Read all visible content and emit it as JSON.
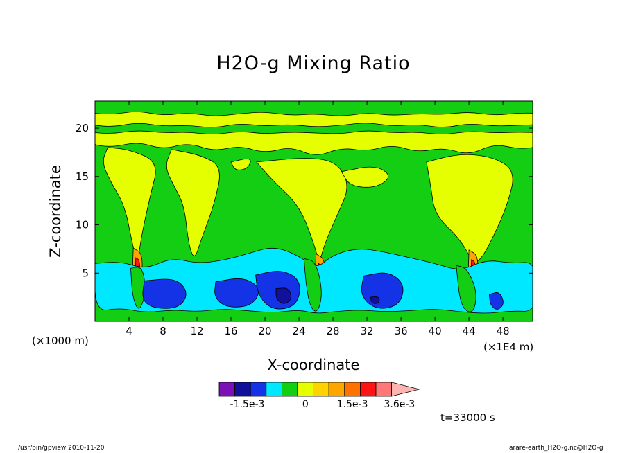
{
  "chart_data": {
    "type": "heatmap",
    "title": "H2O-g Mixing Ratio",
    "xlabel": "X-coordinate",
    "ylabel": "Z-coordinate",
    "x_unit": "(×1E4 m)",
    "y_unit": "(×1000 m)",
    "xlim": [
      0,
      51.5
    ],
    "ylim": [
      0,
      22.8
    ],
    "x_ticks": [
      4,
      8,
      12,
      16,
      20,
      24,
      28,
      32,
      36,
      40,
      44,
      48
    ],
    "y_ticks": [
      5,
      10,
      15,
      20
    ],
    "grid": false,
    "field": {
      "layers": [
        {
          "name": "upper-yellow-band",
          "z_range": [
            17.5,
            21.5
          ],
          "level": 1
        },
        {
          "name": "top-green",
          "z_range": [
            21.5,
            22.8
          ],
          "level": 0
        },
        {
          "name": "lower-cyan-band",
          "z_range": [
            0.8,
            6.3
          ],
          "level": -1
        },
        {
          "name": "surface-green",
          "z_range": [
            0,
            0.8
          ],
          "level": 0
        }
      ],
      "plumes_x": [
        5,
        11.5,
        26.5,
        44.5
      ],
      "blue_cores_x": [
        8,
        17.5,
        22,
        33.5,
        47
      ],
      "darkest_core": {
        "x": 22,
        "z": 2.6
      }
    },
    "colorbar": {
      "colors": [
        "#7a10b6",
        "#10109a",
        "#1432e6",
        "#00e8ff",
        "#14ce14",
        "#e6ff00",
        "#ffd200",
        "#ffa500",
        "#ff7200",
        "#ff1414",
        "#ff7878",
        "#ffb4b4"
      ],
      "labels": [
        "-1.5e-3",
        "0",
        "1.5e-3",
        "3.6e-3"
      ],
      "extend": "max"
    },
    "time_label": "t=33000 s"
  },
  "footer": {
    "left": "/usr/bin/gpview   2010-11-20",
    "right": "arare-earth_H2O-g.nc@H2O-g"
  }
}
